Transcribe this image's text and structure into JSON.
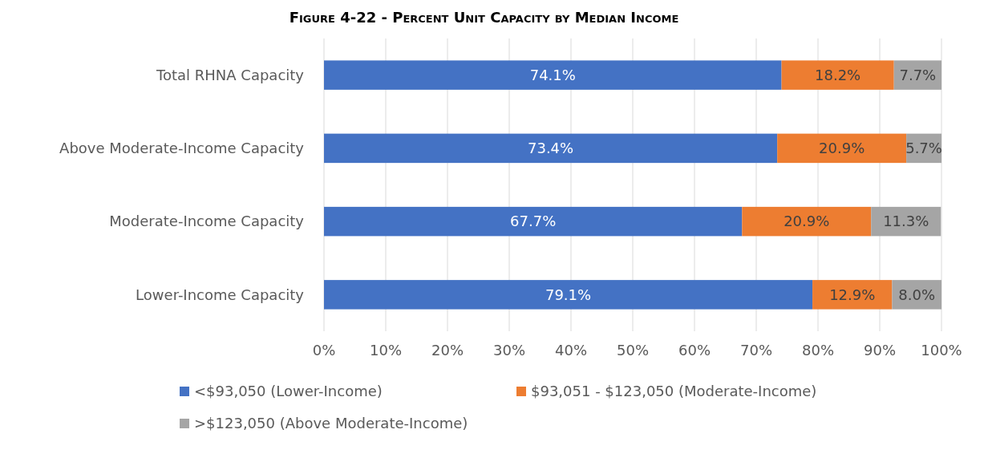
{
  "chart_data": {
    "type": "bar",
    "orientation": "horizontal",
    "stacked": true,
    "title": "Figure 4-22 - Percent Unit Capacity by Median Income",
    "categories": [
      "Total RHNA Capacity",
      "Above Moderate-Income Capacity",
      "Moderate-Income Capacity",
      "Lower-Income Capacity"
    ],
    "series": [
      {
        "name": "<$93,050 (Lower-Income)",
        "color": "#4472c4",
        "values": [
          74.1,
          73.4,
          67.7,
          79.1
        ]
      },
      {
        "name": "$93,051 - $123,050 (Moderate-Income)",
        "color": "#ed7d31",
        "values": [
          18.2,
          20.9,
          20.9,
          12.9
        ]
      },
      {
        "name": ">$123,050 (Above Moderate-Income)",
        "color": "#a5a5a5",
        "values": [
          7.7,
          5.7,
          11.3,
          8.0
        ]
      }
    ],
    "value_labels": [
      [
        "74.1%",
        "73.4%",
        "67.7%",
        "79.1%"
      ],
      [
        "18.2%",
        "20.9%",
        "20.9%",
        "12.9%"
      ],
      [
        "7.7%",
        "5.7%",
        "11.3%",
        "8.0%"
      ]
    ],
    "xlim": [
      0,
      100
    ],
    "xticks": [
      {
        "value": 0,
        "label": "0%"
      },
      {
        "value": 10,
        "label": "10%"
      },
      {
        "value": 20,
        "label": "20%"
      },
      {
        "value": 30,
        "label": "30%"
      },
      {
        "value": 40,
        "label": "40%"
      },
      {
        "value": 50,
        "label": "50%"
      },
      {
        "value": 60,
        "label": "60%"
      },
      {
        "value": 70,
        "label": "70%"
      },
      {
        "value": 80,
        "label": "80%"
      },
      {
        "value": 90,
        "label": "90%"
      },
      {
        "value": 100,
        "label": "100%"
      }
    ],
    "grid": "x",
    "legend": "bottom"
  }
}
